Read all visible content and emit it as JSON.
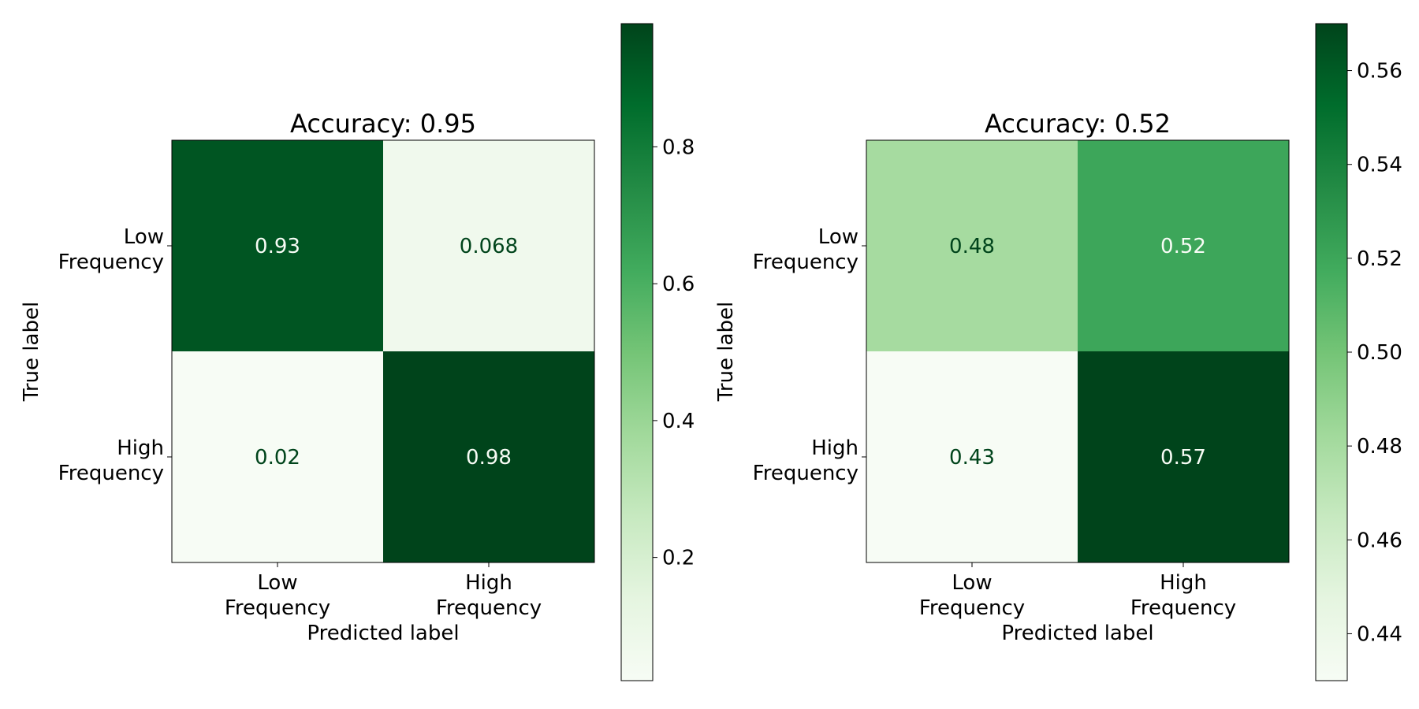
{
  "chart_data": [
    {
      "type": "heatmap",
      "title": "Accuracy: 0.95",
      "xlabel": "Predicted label",
      "ylabel": "True label",
      "x_categories": [
        [
          "Low",
          "Frequency"
        ],
        [
          "High",
          "Frequency"
        ]
      ],
      "y_categories": [
        [
          "Low",
          "Frequency"
        ],
        [
          "High",
          "Frequency"
        ]
      ],
      "matrix": [
        [
          0.93,
          0.068
        ],
        [
          0.02,
          0.98
        ]
      ],
      "cell_labels": [
        [
          "0.93",
          "0.068"
        ],
        [
          "0.02",
          "0.98"
        ]
      ],
      "colormap": "Greens",
      "colorbar": {
        "min": 0.02,
        "max": 0.98,
        "ticks": [
          0.2,
          0.4,
          0.6,
          0.8
        ],
        "tick_labels": [
          "0.2",
          "0.4",
          "0.6",
          "0.8"
        ]
      },
      "grid": false
    },
    {
      "type": "heatmap",
      "title": "Accuracy: 0.52",
      "xlabel": "Predicted label",
      "ylabel": "True label",
      "x_categories": [
        [
          "Low",
          "Frequency"
        ],
        [
          "High",
          "Frequency"
        ]
      ],
      "y_categories": [
        [
          "Low",
          "Frequency"
        ],
        [
          "High",
          "Frequency"
        ]
      ],
      "matrix": [
        [
          0.48,
          0.52
        ],
        [
          0.43,
          0.57
        ]
      ],
      "cell_labels": [
        [
          "0.48",
          "0.52"
        ],
        [
          "0.43",
          "0.57"
        ]
      ],
      "colormap": "Greens",
      "colorbar": {
        "min": 0.43,
        "max": 0.57,
        "ticks": [
          0.44,
          0.46,
          0.48,
          0.5,
          0.52,
          0.54,
          0.56
        ],
        "tick_labels": [
          "0.44",
          "0.46",
          "0.48",
          "0.50",
          "0.52",
          "0.54",
          "0.56"
        ]
      },
      "grid": false
    }
  ],
  "colors": {
    "greens_ramp": [
      "#f7fcf5",
      "#e5f5e0",
      "#c7e9c0",
      "#a1d99b",
      "#74c476",
      "#41ab5d",
      "#238b45",
      "#006d2c",
      "#00441b"
    ],
    "text_dark": "#00441b",
    "text_light": "#f7fcf5"
  }
}
